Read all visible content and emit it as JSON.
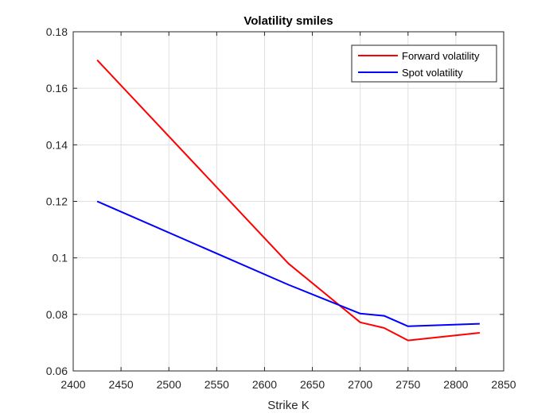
{
  "chart_data": {
    "type": "line",
    "title": "Volatility smiles",
    "xlabel": "Strike K",
    "ylabel": "",
    "xlim": [
      2400,
      2850
    ],
    "ylim": [
      0.06,
      0.18
    ],
    "xticks": [
      2400,
      2450,
      2500,
      2550,
      2600,
      2650,
      2700,
      2750,
      2800,
      2850
    ],
    "yticks": [
      0.06,
      0.08,
      0.1,
      0.12,
      0.14,
      0.16,
      0.18
    ],
    "xtick_labels": [
      "2400",
      "2450",
      "2500",
      "2550",
      "2600",
      "2650",
      "2700",
      "2750",
      "2800",
      "2850"
    ],
    "ytick_labels": [
      "0.06",
      "0.08",
      "0.1",
      "0.12",
      "0.14",
      "0.16",
      "0.18"
    ],
    "grid": true,
    "legend_position": "top-right",
    "series": [
      {
        "name": "Forward volatility",
        "color": "#ff0000",
        "x": [
          2425,
          2625,
          2700,
          2725,
          2750,
          2825
        ],
        "y": [
          0.17,
          0.098,
          0.0772,
          0.0752,
          0.0708,
          0.0735
        ]
      },
      {
        "name": "Spot volatility",
        "color": "#0000ff",
        "x": [
          2425,
          2625,
          2700,
          2725,
          2750,
          2825
        ],
        "y": [
          0.12,
          0.0905,
          0.0803,
          0.0795,
          0.0758,
          0.0767
        ]
      }
    ]
  }
}
